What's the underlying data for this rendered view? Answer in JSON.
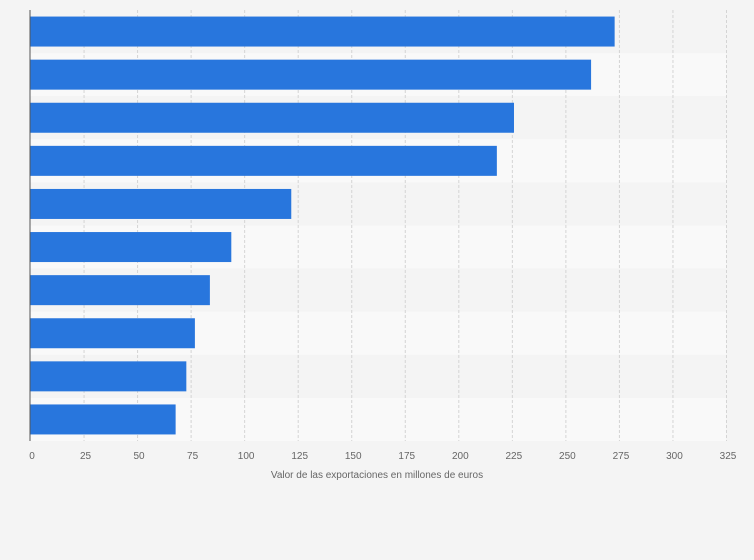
{
  "chart_data": {
    "type": "bar",
    "orientation": "horizontal",
    "categories": [
      "",
      "",
      "",
      "",
      "",
      "",
      "",
      "",
      "",
      ""
    ],
    "values": [
      273,
      262,
      226,
      218,
      122,
      94,
      84,
      77,
      73,
      68
    ],
    "xlim": [
      0,
      325
    ],
    "xticks": [
      0,
      25,
      50,
      75,
      100,
      125,
      150,
      175,
      200,
      225,
      250,
      275,
      300,
      325
    ],
    "xlabel": "Valor de las exportaciones en millones de euros",
    "ylabel": "",
    "title": "",
    "grid": true,
    "bar_color": "#2876dd",
    "background_color": "#f4f4f4",
    "band_colors": [
      "#f4f4f4",
      "#f9f9f9"
    ]
  }
}
